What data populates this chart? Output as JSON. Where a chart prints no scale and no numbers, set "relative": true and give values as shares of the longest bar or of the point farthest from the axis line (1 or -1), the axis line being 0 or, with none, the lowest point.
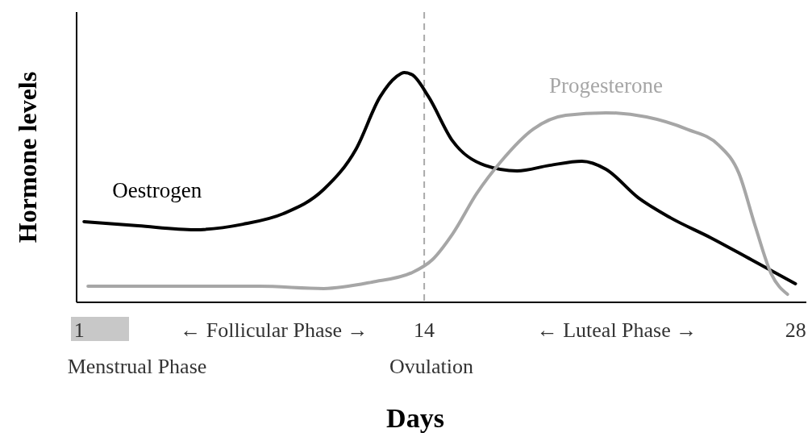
{
  "chart_data": {
    "type": "line",
    "relative": true,
    "xlabel": "Days",
    "ylabel": "Hormone levels",
    "xlim": [
      0.9,
      28.4
    ],
    "xticks": [
      1,
      14,
      28
    ],
    "grid": false,
    "marker": "none",
    "line_style": "solid",
    "series": [
      {
        "name": "Oestrogen",
        "color": "#000000",
        "x": [
          1.18,
          3.22,
          5.35,
          7.17,
          8.69,
          10.21,
          11.43,
          12.34,
          12.95,
          13.25,
          13.55,
          14.16,
          15.07,
          16.29,
          17.5,
          18.72,
          19.94,
          20.85,
          22.06,
          23.28,
          24.8,
          26.32,
          27.99
        ],
        "values": [
          0.351,
          0.333,
          0.316,
          0.34,
          0.386,
          0.491,
          0.667,
          0.895,
          0.982,
          1.0,
          0.99,
          0.895,
          0.702,
          0.596,
          0.572,
          0.596,
          0.614,
          0.579,
          0.456,
          0.368,
          0.281,
          0.186,
          0.081
        ]
      },
      {
        "name": "Progesterone",
        "color": "#a6a6a6",
        "x": [
          1.33,
          4.13,
          7.78,
          10.21,
          12.03,
          13.55,
          14.31,
          15.07,
          15.98,
          16.9,
          18.11,
          19.33,
          20.85,
          22.37,
          23.89,
          25.1,
          25.86,
          26.47,
          27.08,
          27.69
        ],
        "values": [
          0.07,
          0.07,
          0.07,
          0.06,
          0.088,
          0.13,
          0.186,
          0.298,
          0.474,
          0.614,
          0.754,
          0.814,
          0.825,
          0.807,
          0.754,
          0.684,
          0.561,
          0.333,
          0.123,
          0.035
        ]
      }
    ],
    "ref_lines": [
      {
        "axis": "x",
        "value": 14,
        "color": "#aaaaaa",
        "line_style": "dashed"
      }
    ],
    "annotations": [
      "← Follicular Phase →",
      "← Luteal Phase →",
      "Menstrual Phase",
      "Ovulation"
    ]
  }
}
